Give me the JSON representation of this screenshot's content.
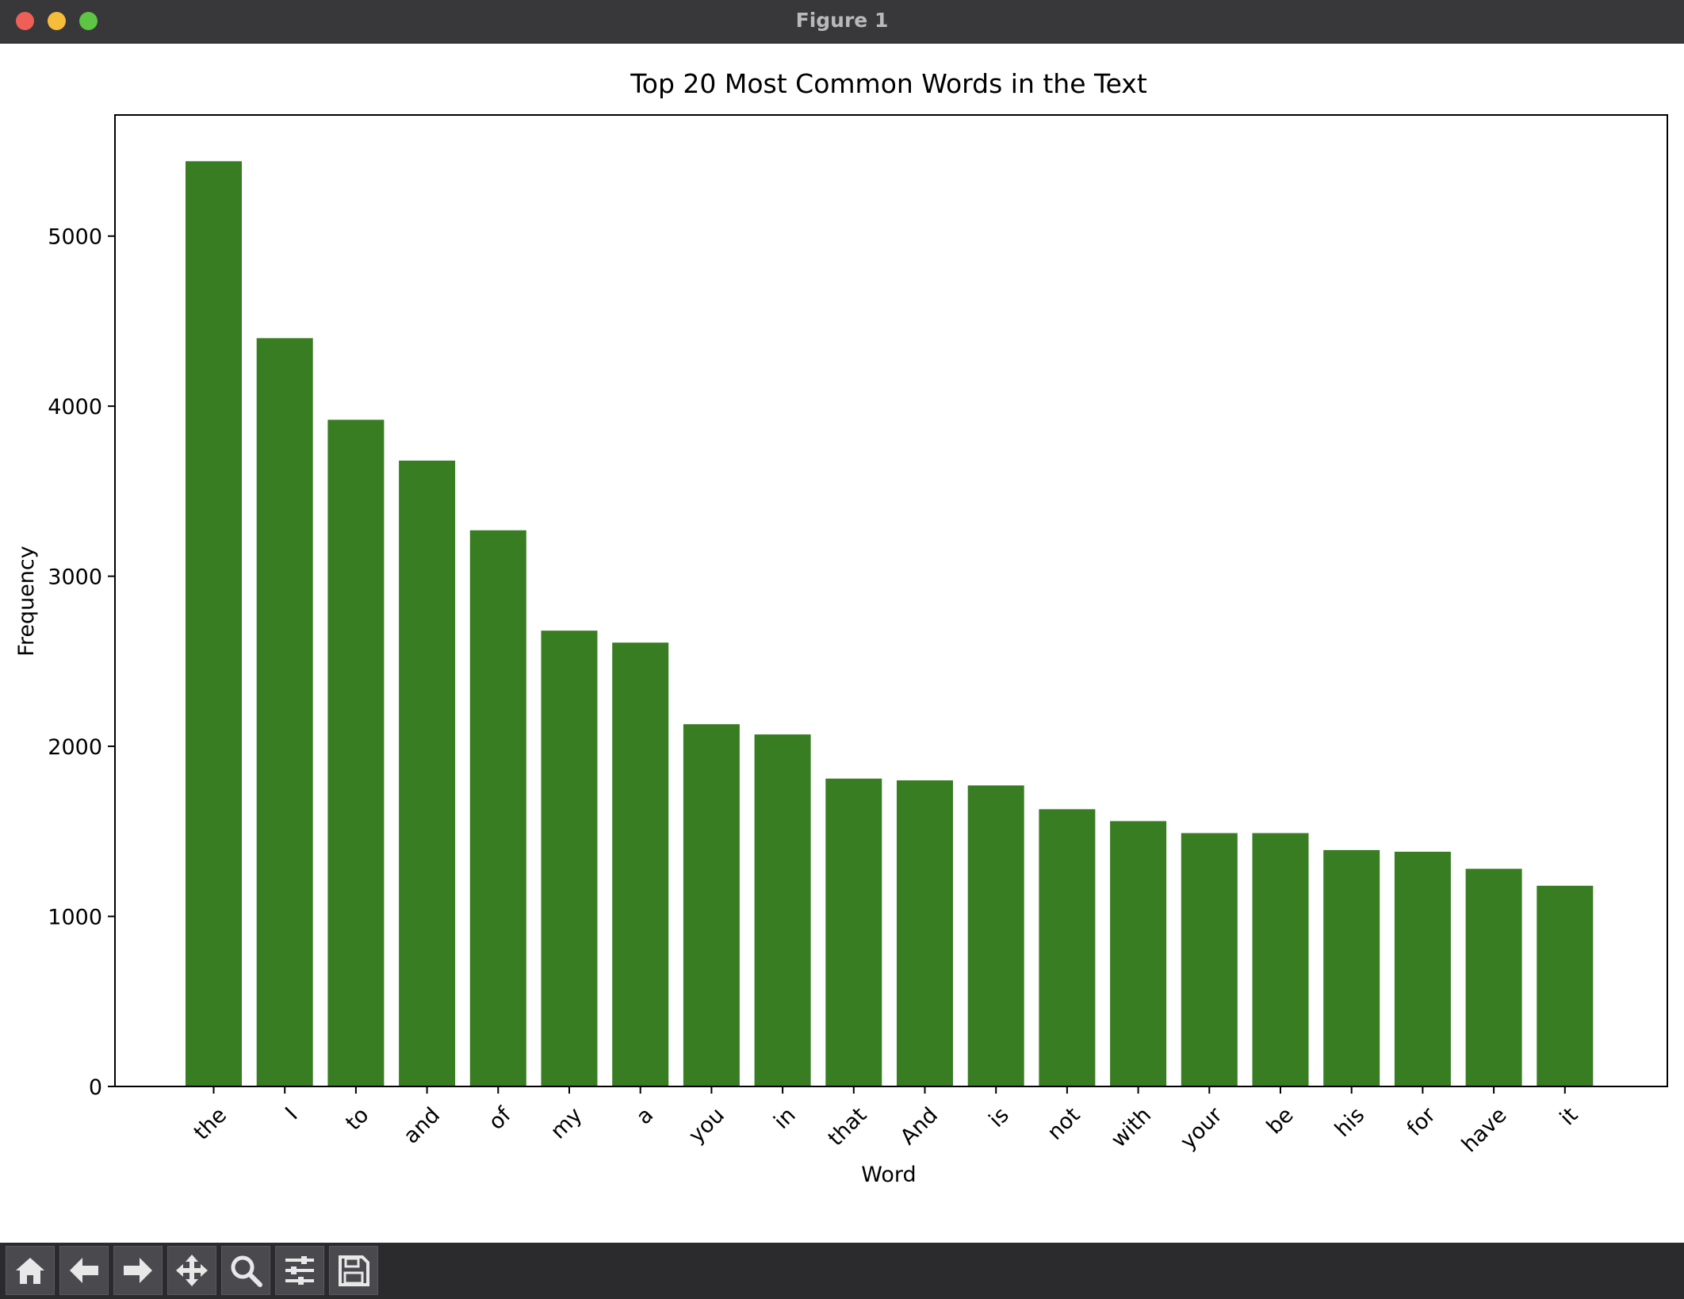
{
  "window": {
    "title": "Figure 1"
  },
  "toolbar": {
    "tools": [
      {
        "icon": "home-icon"
      },
      {
        "icon": "back-arrow-icon"
      },
      {
        "icon": "forward-arrow-icon"
      },
      {
        "icon": "pan-icon"
      },
      {
        "icon": "zoom-icon"
      },
      {
        "icon": "configure-subplots-icon"
      },
      {
        "icon": "save-icon"
      }
    ]
  },
  "chart_data": {
    "type": "bar",
    "title": "Top 20 Most Common Words in the Text",
    "xlabel": "Word",
    "ylabel": "Frequency",
    "categories": [
      "the",
      "I",
      "to",
      "and",
      "of",
      "my",
      "a",
      "you",
      "in",
      "that",
      "And",
      "is",
      "not",
      "with",
      "your",
      "be",
      "his",
      "for",
      "have",
      "it"
    ],
    "values": [
      5440,
      4400,
      3920,
      3680,
      3270,
      2680,
      2610,
      2130,
      2070,
      1810,
      1800,
      1770,
      1630,
      1560,
      1490,
      1490,
      1390,
      1380,
      1280,
      1180
    ],
    "yticks": [
      0,
      1000,
      2000,
      3000,
      4000,
      5000
    ],
    "ylim": [
      0,
      5712
    ],
    "bar_color": "#387d22",
    "grid": false,
    "legend": "none"
  }
}
